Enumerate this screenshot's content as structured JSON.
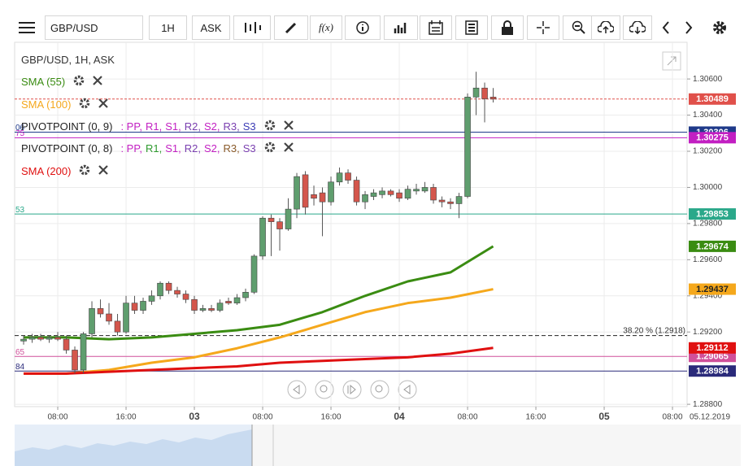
{
  "toolbar": {
    "symbol": "GBP/USD",
    "timeframe": "1H",
    "price": "ASK",
    "fx": "f(x)"
  },
  "chart_data": {
    "type": "candlestick",
    "legend": {
      "title": "GBP/USD, 1H, ASK"
    },
    "xlim": [
      2.95,
      81.71
    ],
    "xticks": [
      {
        "value": 8,
        "label": "08:00"
      },
      {
        "value": 16,
        "label": "16:00"
      },
      {
        "value": 24,
        "label": "03"
      },
      {
        "value": 32,
        "label": "08:00"
      },
      {
        "value": 40,
        "label": "16:00"
      },
      {
        "value": 48,
        "label": "04"
      },
      {
        "value": 56,
        "label": "08:00"
      },
      {
        "value": 64,
        "label": "16:00"
      },
      {
        "value": 72,
        "label": "05"
      },
      {
        "value": 80,
        "label": "08:00"
      }
    ],
    "date_label": "05.12.2019",
    "ylim": [
      1.28787,
      1.30803
    ],
    "yticks": [
      {
        "value": 1.288,
        "label": "1.28800"
      },
      {
        "value": 1.292,
        "label": "1.29200"
      },
      {
        "value": 1.294,
        "label": "1.29400"
      },
      {
        "value": 1.296,
        "label": "1.29600"
      },
      {
        "value": 1.298,
        "label": "1.29800"
      },
      {
        "value": 1.3,
        "label": "1.30000"
      },
      {
        "value": 1.302,
        "label": "1.30200"
      },
      {
        "value": 1.304,
        "label": "1.30400"
      },
      {
        "value": 1.306,
        "label": "1.30600"
      }
    ],
    "grid": true,
    "up_color": "#5f9e6e",
    "down_color": "#d4564c",
    "x": [
      4,
      5,
      6,
      7,
      8,
      9,
      10,
      11,
      12,
      13,
      14,
      15,
      16,
      17,
      18,
      19,
      20,
      21,
      22,
      23,
      24,
      25,
      26,
      27,
      28,
      29,
      30,
      31,
      32,
      33,
      34,
      35,
      36,
      37,
      38,
      39,
      40,
      41,
      42,
      43,
      44,
      45,
      46,
      47,
      48,
      49,
      50,
      51,
      52,
      53,
      54,
      55,
      56,
      57,
      58,
      59
    ],
    "open": [
      1.2915,
      1.2916,
      1.2917,
      1.2916,
      1.2917,
      1.2916,
      1.291,
      1.2899,
      1.2919,
      1.2933,
      1.293,
      1.2926,
      1.292,
      1.2936,
      1.2932,
      1.2937,
      1.294,
      1.2947,
      1.2943,
      1.2941,
      1.2938,
      1.2932,
      1.2933,
      1.2932,
      1.2937,
      1.2936,
      1.2939,
      1.2942,
      1.2962,
      1.2983,
      1.2981,
      1.2977,
      1.2988,
      1.3007,
      1.2996,
      1.2997,
      1.2992,
      1.3003,
      1.3008,
      1.3004,
      1.2992,
      1.2995,
      1.2996,
      1.2998,
      1.2997,
      1.2994,
      1.2998,
      1.2998,
      1.3,
      1.2993,
      1.2992,
      1.2991,
      1.2995,
      1.305,
      1.3055,
      1.305
    ],
    "high": [
      1.2918,
      1.2919,
      1.2919,
      1.2918,
      1.292,
      1.2918,
      1.2912,
      1.292,
      1.2937,
      1.2938,
      1.2936,
      1.293,
      1.294,
      1.294,
      1.2939,
      1.2943,
      1.2948,
      1.2948,
      1.2945,
      1.2943,
      1.294,
      1.2935,
      1.2935,
      1.2938,
      1.2939,
      1.2941,
      1.2944,
      1.2963,
      1.2984,
      1.2985,
      1.2983,
      1.2994,
      1.3008,
      1.3009,
      1.3001,
      1.3,
      1.3006,
      1.3011,
      1.301,
      1.3006,
      1.2998,
      1.2999,
      1.3,
      1.2999,
      1.2999,
      1.3001,
      1.3002,
      1.3003,
      1.3002,
      1.2995,
      1.2994,
      1.2997,
      1.3052,
      1.3064,
      1.3058,
      1.3055
    ],
    "low": [
      1.2913,
      1.2914,
      1.2915,
      1.2914,
      1.2915,
      1.2908,
      1.2897,
      1.2897,
      1.2917,
      1.2928,
      1.2924,
      1.2918,
      1.2919,
      1.293,
      1.293,
      1.2935,
      1.2938,
      1.2941,
      1.2939,
      1.2936,
      1.293,
      1.2931,
      1.2931,
      1.2931,
      1.2935,
      1.2935,
      1.2937,
      1.2941,
      1.296,
      1.2962,
      1.2965,
      1.2976,
      1.2983,
      1.2985,
      1.299,
      1.2973,
      1.299,
      1.3001,
      1.3002,
      1.299,
      1.2988,
      1.2993,
      1.2994,
      1.2995,
      1.2992,
      1.2993,
      1.2996,
      1.2997,
      1.2991,
      1.2989,
      1.2988,
      1.2983,
      1.2994,
      1.304,
      1.3036,
      1.3047
    ],
    "close": [
      1.2916,
      1.2917,
      1.2916,
      1.2917,
      1.2916,
      1.291,
      1.2899,
      1.2919,
      1.2933,
      1.293,
      1.2926,
      1.292,
      1.2936,
      1.2932,
      1.2937,
      1.294,
      1.2947,
      1.2943,
      1.2941,
      1.2938,
      1.2932,
      1.2933,
      1.2932,
      1.2936,
      1.2936,
      1.2939,
      1.2942,
      1.2962,
      1.2983,
      1.2981,
      1.2977,
      1.2988,
      1.3006,
      1.2989,
      1.2994,
      1.2992,
      1.3003,
      1.3008,
      1.3004,
      1.2992,
      1.2996,
      1.2997,
      1.2998,
      1.2996,
      1.2994,
      1.2999,
      1.2999,
      1.3,
      1.2993,
      1.2992,
      1.2991,
      1.2995,
      1.305,
      1.3055,
      1.3049,
      1.30489
    ],
    "series": [
      {
        "name": "SMA (55)",
        "color": "#3a8c12",
        "x": [
          4,
          9,
          14,
          19,
          24,
          29,
          34,
          39,
          44,
          49,
          54,
          59
        ],
        "values": [
          1.2917,
          1.2917,
          1.2916,
          1.2917,
          1.2919,
          1.2921,
          1.2924,
          1.2931,
          1.294,
          1.2948,
          1.2953,
          1.29674
        ],
        "end_label": "1.29674"
      },
      {
        "name": "SMA (100)",
        "color": "#f5a81c",
        "x": [
          4,
          9,
          14,
          19,
          24,
          29,
          34,
          39,
          44,
          49,
          54,
          59
        ],
        "values": [
          1.2897,
          1.2897,
          1.2899,
          1.2903,
          1.2906,
          1.2911,
          1.2917,
          1.2924,
          1.2931,
          1.2936,
          1.2939,
          1.29437
        ],
        "end_label": "1.29437"
      },
      {
        "name": "SMA (200)",
        "color": "#e01010",
        "x": [
          4,
          9,
          14,
          19,
          24,
          29,
          34,
          39,
          44,
          49,
          54,
          59
        ],
        "values": [
          1.2897,
          1.2897,
          1.2898,
          1.2899,
          1.29,
          1.2901,
          1.2903,
          1.2904,
          1.2905,
          1.2906,
          1.2908,
          1.29112
        ],
        "end_label": "1.29112"
      }
    ],
    "pivots": [
      {
        "name": "PIVOTPOINT (0, 9)",
        "levels": [
          {
            "text": ": PP,",
            "color": "#c21fc2"
          },
          {
            "text": "R1,",
            "color": "#c21fc2"
          },
          {
            "text": "S1,",
            "color": "#c21fc2"
          },
          {
            "text": "R2,",
            "color": "#7a3fb0"
          },
          {
            "text": "S2,",
            "color": "#c21fc2"
          },
          {
            "text": "R3,",
            "color": "#7a3fb0"
          },
          {
            "text": "S3",
            "color": "#3b3bb5"
          }
        ]
      },
      {
        "name": "PIVOTPOINT (0, 8)",
        "levels": [
          {
            "text": ": PP,",
            "color": "#c21fc2"
          },
          {
            "text": "R1,",
            "color": "#2e9a2e"
          },
          {
            "text": "S1,",
            "color": "#c21fc2"
          },
          {
            "text": "R2,",
            "color": "#7a3fb0"
          },
          {
            "text": "S2,",
            "color": "#c21fc2"
          },
          {
            "text": "R3,",
            "color": "#8a5a2a"
          },
          {
            "text": "S3",
            "color": "#7a3fb0"
          }
        ]
      }
    ],
    "levels": [
      {
        "value": 1.30489,
        "label": "1.30489",
        "color": "#e0504a",
        "dash": true
      },
      {
        "value": 1.30306,
        "label": "1.30306",
        "color": "#1f3a8a",
        "tag": "06"
      },
      {
        "value": 1.30275,
        "label": "1.30275",
        "color": "#c21fc2",
        "tag": "75"
      },
      {
        "value": 1.29853,
        "label": "1.29853",
        "color": "#2aa88a",
        "tag": "53"
      },
      {
        "value": 1.29065,
        "label": "1.29065",
        "color": "#d0509a",
        "tag": "65"
      },
      {
        "value": 1.28984,
        "label": "1.28984",
        "color": "#2a2a7a",
        "tag": "84"
      }
    ],
    "fib": {
      "value": 1.2918,
      "label": "38.20 % (1.2918)"
    }
  }
}
